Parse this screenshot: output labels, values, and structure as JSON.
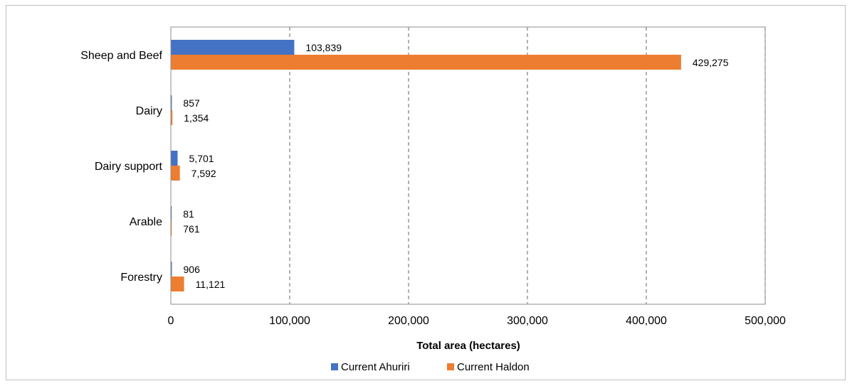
{
  "chart_data": {
    "type": "bar",
    "orientation": "horizontal",
    "categories": [
      "Sheep and Beef",
      "Dairy",
      "Dairy support",
      "Arable",
      "Forestry"
    ],
    "series": [
      {
        "name": "Current Ahuriri",
        "values": [
          103839,
          857,
          5701,
          81,
          906
        ],
        "labels": [
          "103,839",
          "857",
          "5,701",
          "81",
          "906"
        ],
        "color": "#4472c4"
      },
      {
        "name": "Current Haldon",
        "values": [
          429275,
          1354,
          7592,
          761,
          11121
        ],
        "labels": [
          "429,275",
          "1,354",
          "7,592",
          "761",
          "11,121"
        ],
        "color": "#ed7d31"
      }
    ],
    "xlabel": "Total area (hectares)",
    "xlim": [
      0,
      500000
    ],
    "xticks": [
      0,
      100000,
      200000,
      300000,
      400000,
      500000
    ],
    "xtick_labels": [
      "0",
      "100,000",
      "200,000",
      "300,000",
      "400,000",
      "500,000"
    ],
    "grid": "vertical dashed",
    "legend_position": "bottom"
  }
}
